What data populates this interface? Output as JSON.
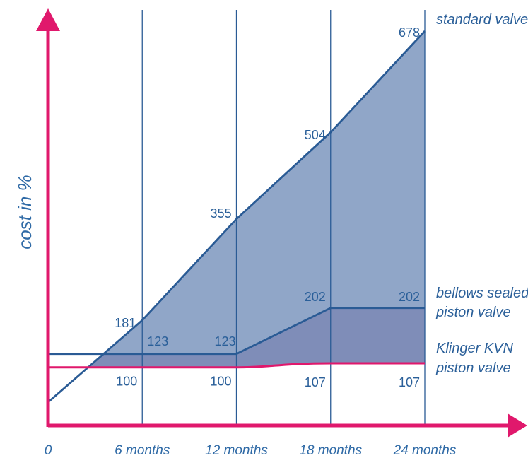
{
  "chart_data": {
    "type": "line",
    "title": "",
    "xlabel": "",
    "ylabel": "cost in %",
    "x": [
      0,
      6,
      12,
      18,
      24
    ],
    "x_tick_labels": [
      "0",
      "6 months",
      "12 months",
      "18 months",
      "24 months"
    ],
    "xlim": [
      0,
      24
    ],
    "ylim": [
      0,
      700
    ],
    "grid": "vertical lines at 6, 12, 18, 24 months",
    "legend": "series names placed at right end of each line",
    "series": [
      {
        "name": "standard valve",
        "x": [
          0,
          6,
          12,
          18,
          24
        ],
        "values": [
          40,
          181,
          355,
          504,
          678
        ],
        "labels": [
          {
            "x": 6,
            "y": 181,
            "text": "181"
          },
          {
            "x": 12,
            "y": 355,
            "text": "355"
          },
          {
            "x": 18,
            "y": 504,
            "text": "504"
          },
          {
            "x": 24,
            "y": 678,
            "text": "678"
          }
        ],
        "color": "#2a5b95"
      },
      {
        "name": "bellows sealed piston valve",
        "name_lines": [
          "bellows sealed",
          "piston valve"
        ],
        "x": [
          0,
          6,
          12,
          18,
          24
        ],
        "values": [
          123,
          123,
          123,
          202,
          202
        ],
        "labels": [
          {
            "x": 6,
            "y": 123,
            "text": "123"
          },
          {
            "x": 12,
            "y": 123,
            "text": "123"
          },
          {
            "x": 18,
            "y": 202,
            "text": "202"
          },
          {
            "x": 24,
            "y": 202,
            "text": "202"
          }
        ],
        "color": "#2a5b95"
      },
      {
        "name": "Klinger KVN piston valve",
        "name_lines": [
          "Klinger KVN",
          "piston valve"
        ],
        "x": [
          0,
          6,
          12,
          18,
          24
        ],
        "values": [
          100,
          100,
          100,
          107,
          107
        ],
        "labels": [
          {
            "x": 6,
            "y": 100,
            "text": "100"
          },
          {
            "x": 12,
            "y": 100,
            "text": "100"
          },
          {
            "x": 18,
            "y": 107,
            "text": "107"
          },
          {
            "x": 24,
            "y": 107,
            "text": "107"
          }
        ],
        "color": "#e0186c"
      }
    ]
  },
  "colors": {
    "axis": "#e0186c",
    "grid": "#2a5b95",
    "fill_upper": "#90a6c8",
    "fill_lower": "#7f8db8"
  }
}
